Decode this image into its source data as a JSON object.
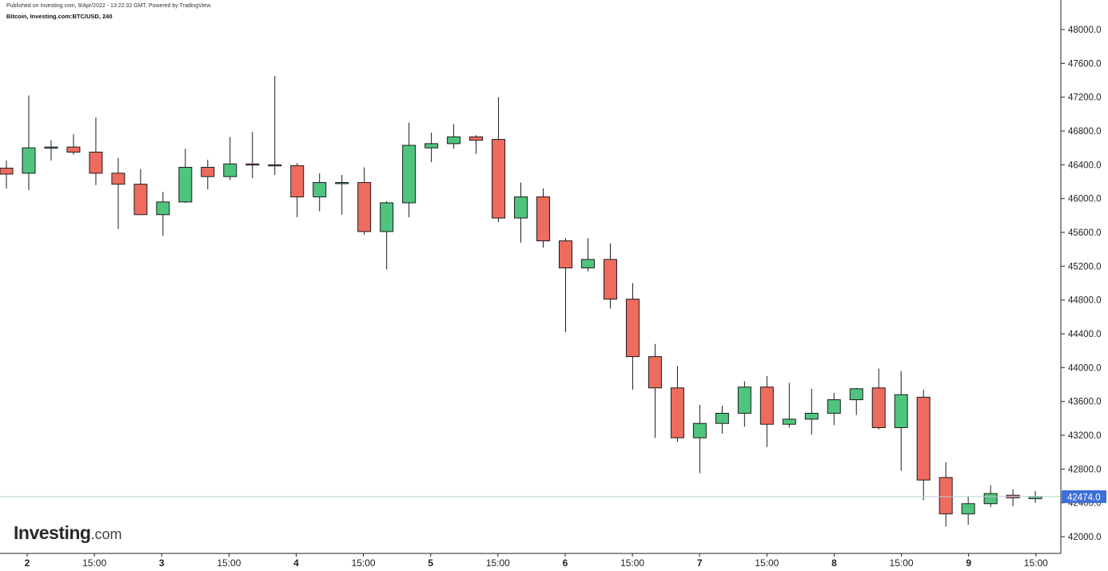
{
  "header": {
    "published": "Published on Investing.com, 9/Apr/2022 - 13:22:32 GMT, Powered by TradingView.",
    "symbol": "Bitcoin, Investing.com:BTC/USD, 240"
  },
  "brand": {
    "name": "Investing",
    "suffix": ".com"
  },
  "chart_data": {
    "type": "candlestick",
    "series_name": "BTC/USD",
    "ylim": [
      41800,
      48300
    ],
    "y_ticks": [
      "48000.0",
      "47600.0",
      "47200.0",
      "46800.0",
      "46400.0",
      "46000.0",
      "45600.0",
      "45200.0",
      "44800.0",
      "44400.0",
      "44000.0",
      "43600.0",
      "43200.0",
      "42800.0",
      "42400.0",
      "42000.0"
    ],
    "x_tick_labels": [
      "2",
      "15:00",
      "3",
      "15:00",
      "4",
      "15:00",
      "5",
      "15:00",
      "6",
      "15:00",
      "7",
      "15:00",
      "8",
      "15:00",
      "9",
      "15:00"
    ],
    "last_price": 42474.0,
    "last_price_label": "42474.0",
    "colors": {
      "up": "#4fc47e",
      "down": "#ee6b5f",
      "wick": "#1c1c1c",
      "last_line": "#b9cfd6",
      "last_badge": "#3d6fd6"
    },
    "candles": [
      {
        "o": 46360,
        "h": 46450,
        "l": 46120,
        "c": 46290
      },
      {
        "o": 46300,
        "h": 47220,
        "l": 46100,
        "c": 46600
      },
      {
        "o": 46600,
        "h": 46690,
        "l": 46450,
        "c": 46610
      },
      {
        "o": 46610,
        "h": 46760,
        "l": 46520,
        "c": 46550
      },
      {
        "o": 46550,
        "h": 46960,
        "l": 46160,
        "c": 46300
      },
      {
        "o": 46300,
        "h": 46480,
        "l": 45640,
        "c": 46170
      },
      {
        "o": 46170,
        "h": 46350,
        "l": 45810,
        "c": 45810
      },
      {
        "o": 45810,
        "h": 46080,
        "l": 45560,
        "c": 45960
      },
      {
        "o": 45960,
        "h": 46590,
        "l": 45950,
        "c": 46370
      },
      {
        "o": 46370,
        "h": 46460,
        "l": 46110,
        "c": 46260
      },
      {
        "o": 46260,
        "h": 46730,
        "l": 46220,
        "c": 46410
      },
      {
        "o": 46410,
        "h": 46790,
        "l": 46240,
        "c": 46400
      },
      {
        "o": 46400,
        "h": 47450,
        "l": 46280,
        "c": 46390
      },
      {
        "o": 46390,
        "h": 46420,
        "l": 45780,
        "c": 46020
      },
      {
        "o": 46020,
        "h": 46300,
        "l": 45850,
        "c": 46190
      },
      {
        "o": 46190,
        "h": 46280,
        "l": 45810,
        "c": 46190
      },
      {
        "o": 46190,
        "h": 46370,
        "l": 45570,
        "c": 45610
      },
      {
        "o": 45610,
        "h": 45970,
        "l": 45160,
        "c": 45950
      },
      {
        "o": 45950,
        "h": 46900,
        "l": 45780,
        "c": 46630
      },
      {
        "o": 46600,
        "h": 46780,
        "l": 46430,
        "c": 46650
      },
      {
        "o": 46650,
        "h": 46880,
        "l": 46590,
        "c": 46730
      },
      {
        "o": 46730,
        "h": 46750,
        "l": 46530,
        "c": 46690
      },
      {
        "o": 46700,
        "h": 47200,
        "l": 45720,
        "c": 45770
      },
      {
        "o": 45770,
        "h": 46190,
        "l": 45480,
        "c": 46020
      },
      {
        "o": 46020,
        "h": 46120,
        "l": 45420,
        "c": 45500
      },
      {
        "o": 45500,
        "h": 45530,
        "l": 44420,
        "c": 45180
      },
      {
        "o": 45180,
        "h": 45530,
        "l": 45140,
        "c": 45280
      },
      {
        "o": 45280,
        "h": 45470,
        "l": 44700,
        "c": 44810
      },
      {
        "o": 44810,
        "h": 45000,
        "l": 43740,
        "c": 44130
      },
      {
        "o": 44130,
        "h": 44280,
        "l": 43170,
        "c": 43760
      },
      {
        "o": 43760,
        "h": 44020,
        "l": 43120,
        "c": 43170
      },
      {
        "o": 43170,
        "h": 43560,
        "l": 42750,
        "c": 43340
      },
      {
        "o": 43340,
        "h": 43550,
        "l": 43220,
        "c": 43460
      },
      {
        "o": 43460,
        "h": 43840,
        "l": 43300,
        "c": 43770
      },
      {
        "o": 43770,
        "h": 43900,
        "l": 43060,
        "c": 43330
      },
      {
        "o": 43330,
        "h": 43820,
        "l": 43290,
        "c": 43390
      },
      {
        "o": 43390,
        "h": 43750,
        "l": 43210,
        "c": 43460
      },
      {
        "o": 43460,
        "h": 43700,
        "l": 43320,
        "c": 43620
      },
      {
        "o": 43620,
        "h": 43760,
        "l": 43440,
        "c": 43750
      },
      {
        "o": 43760,
        "h": 43990,
        "l": 43270,
        "c": 43290
      },
      {
        "o": 43290,
        "h": 43960,
        "l": 42780,
        "c": 43680
      },
      {
        "o": 43650,
        "h": 43740,
        "l": 42430,
        "c": 42670
      },
      {
        "o": 42700,
        "h": 42880,
        "l": 42120,
        "c": 42270
      },
      {
        "o": 42270,
        "h": 42480,
        "l": 42140,
        "c": 42390
      },
      {
        "o": 42390,
        "h": 42610,
        "l": 42350,
        "c": 42510
      },
      {
        "o": 42490,
        "h": 42560,
        "l": 42360,
        "c": 42460
      },
      {
        "o": 42450,
        "h": 42540,
        "l": 42400,
        "c": 42474
      }
    ]
  }
}
